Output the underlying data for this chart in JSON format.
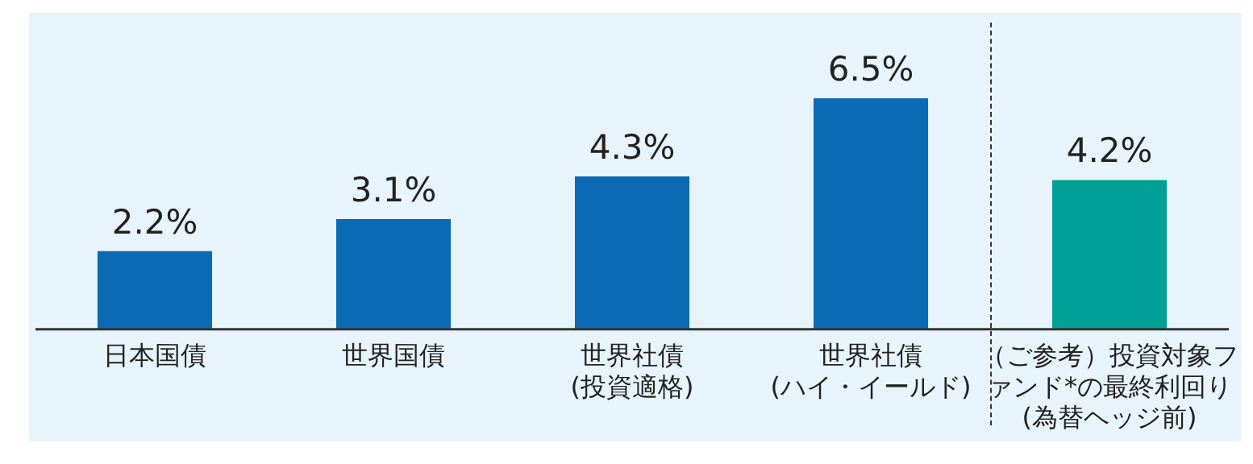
{
  "chart_data": {
    "type": "bar",
    "categories": [
      "日本国債",
      "世界国債",
      "世界社債(投資適格)",
      "世界社債(ハイ・イールド)",
      "（ご参考）投資対象ファンド*の最終利回り(為替ヘッジ前)"
    ],
    "values": [
      2.2,
      3.1,
      4.3,
      6.5,
      4.2
    ],
    "colors": [
      "#0a6ab4",
      "#0a6ab4",
      "#0a6ab4",
      "#0a6ab4",
      "#00a096"
    ],
    "value_labels": [
      "2.2%",
      "3.1%",
      "4.3%",
      "6.5%",
      "4.2%"
    ],
    "grid": false,
    "legend": false
  }
}
